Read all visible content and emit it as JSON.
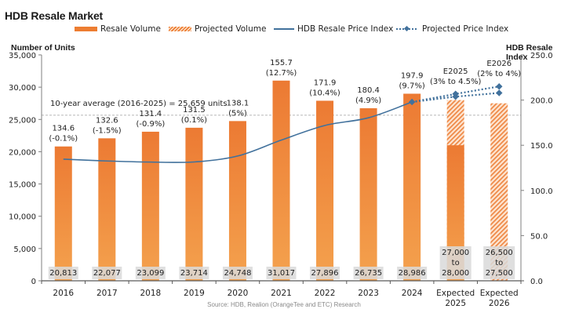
{
  "chart_data": {
    "type": "bar",
    "title": "HDB Resale Market",
    "categories": [
      "2016",
      "2017",
      "2018",
      "2019",
      "2020",
      "2021",
      "2022",
      "2023",
      "2024",
      "Expected 2025",
      "Expected 2026"
    ],
    "category_lines": [
      [
        "2016"
      ],
      [
        "2017"
      ],
      [
        "2018"
      ],
      [
        "2019"
      ],
      [
        "2020"
      ],
      [
        "2021"
      ],
      [
        "2022"
      ],
      [
        "2023"
      ],
      [
        "2024"
      ],
      [
        "Expected",
        "2025"
      ],
      [
        "Expected",
        "2026"
      ]
    ],
    "ylabel_left": "Number of Units",
    "ylabel_right": "HDB Resale Index",
    "ylim_left": [
      0,
      35000
    ],
    "ylim_right": [
      0,
      250
    ],
    "yticks_left": [
      "0",
      "5,000",
      "10,000",
      "15,000",
      "20,000",
      "25,000",
      "30,000",
      "35,000"
    ],
    "yticks_right": [
      "0.0",
      "50.0",
      "100.0",
      "150.0",
      "200.0",
      "250.0"
    ],
    "legend_position": "top",
    "series": [
      {
        "name": "Resale Volume",
        "type": "bar",
        "color": "#ed7d31",
        "values": [
          20813,
          22077,
          23099,
          23714,
          24748,
          31017,
          27896,
          26735,
          28986,
          21000,
          null
        ]
      },
      {
        "name": "Projected Volume",
        "type": "bar-hatched",
        "color": "#ed7d31",
        "values": [
          null,
          null,
          null,
          null,
          null,
          null,
          null,
          null,
          null,
          28000,
          27500
        ]
      },
      {
        "name": "HDB Resale Price Index",
        "type": "line",
        "color": "#41719c",
        "axis": "right",
        "values": [
          134.6,
          132.6,
          131.4,
          131.5,
          138.1,
          155.7,
          171.9,
          180.4,
          197.9,
          null,
          null
        ]
      },
      {
        "name": "Projected Price Index",
        "type": "line-dotted",
        "color": "#41719c",
        "axis": "right",
        "low": [
          null,
          null,
          null,
          null,
          null,
          null,
          null,
          null,
          197.9,
          203.8,
          207.9
        ],
        "high": [
          null,
          null,
          null,
          null,
          null,
          null,
          null,
          null,
          197.9,
          206.8,
          215.1
        ]
      }
    ],
    "bar_labels": [
      [
        "20,813"
      ],
      [
        "22,077"
      ],
      [
        "23,099"
      ],
      [
        "23,714"
      ],
      [
        "24,748"
      ],
      [
        "31,017"
      ],
      [
        "27,896"
      ],
      [
        "26,735"
      ],
      [
        "28,986"
      ],
      [
        "27,000",
        "to",
        "28,000"
      ],
      [
        "26,500",
        "to",
        "27,500"
      ]
    ],
    "index_labels": [
      [
        "134.6",
        "(-0.1%)"
      ],
      [
        "132.6",
        "(-1.5%)"
      ],
      [
        "131.4",
        "(-0.9%)"
      ],
      [
        "131.5",
        "(0.1%)"
      ],
      [
        "138.1",
        "(5%)"
      ],
      [
        "155.7",
        "(12.7%)"
      ],
      [
        "171.9",
        "(10.4%)"
      ],
      [
        "180.4",
        "(4.9%)"
      ],
      [
        "197.9",
        "(9.7%)"
      ],
      [
        "E2025",
        "(3% to 4.5%)"
      ],
      [
        "E2026",
        "(2% to 4%)"
      ]
    ],
    "reference_line": {
      "value": 25659,
      "label": "10-year average (2016-2025) = 25,659 units"
    },
    "source": "Source: HDB, Realion (OrangeTee and ETC) Research"
  }
}
